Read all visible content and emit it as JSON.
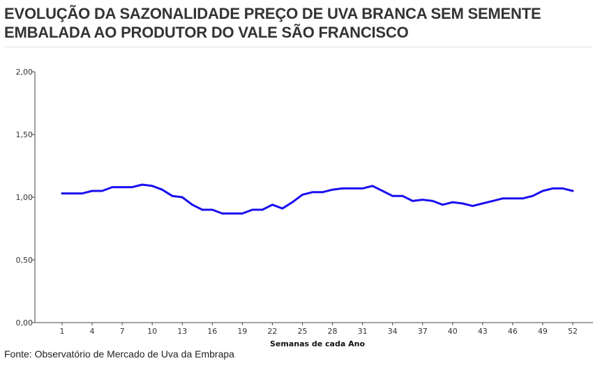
{
  "header": {
    "title_line1": "EVOLUÇÃO DA SAZONALIDADE PREÇO DE UVA BRANCA SEM SEMENTE",
    "title_line2": "EMBALADA AO PRODUTOR DO VALE SÃO FRANCISCO"
  },
  "footer": {
    "source": "Fonte: Observatório de Mercado de Uva da Embrapa"
  },
  "chart_data": {
    "type": "line",
    "xlabel": "Semanas de cada Ano",
    "ylabel": "",
    "xlim": [
      1,
      52
    ],
    "ylim": [
      0,
      2
    ],
    "x_ticks": [
      1,
      4,
      7,
      10,
      13,
      16,
      19,
      22,
      25,
      28,
      31,
      34,
      37,
      40,
      43,
      46,
      49,
      52
    ],
    "y_ticks": [
      "0,00",
      "0,50",
      "1,00",
      "1,50",
      "2,00"
    ],
    "y_tick_values": [
      0,
      0.5,
      1,
      1.5,
      2
    ],
    "grid": false,
    "legend": "none",
    "line_color": "#1a0ff0",
    "series": [
      {
        "x": [
          1,
          2,
          3,
          4,
          5,
          6,
          7,
          8,
          9,
          10,
          11,
          12,
          13,
          14,
          15,
          16,
          17,
          18,
          19,
          20,
          21,
          22,
          23,
          24,
          25,
          26,
          27,
          28,
          29,
          30,
          31,
          32,
          33,
          34,
          35,
          36,
          37,
          38,
          39,
          40,
          41,
          42,
          43,
          44,
          45,
          46,
          47,
          48,
          49,
          50,
          51,
          52
        ],
        "values": [
          1.03,
          1.03,
          1.03,
          1.05,
          1.05,
          1.08,
          1.08,
          1.08,
          1.1,
          1.09,
          1.06,
          1.01,
          1.0,
          0.94,
          0.9,
          0.9,
          0.87,
          0.87,
          0.87,
          0.9,
          0.9,
          0.94,
          0.91,
          0.96,
          1.02,
          1.04,
          1.04,
          1.06,
          1.07,
          1.07,
          1.07,
          1.09,
          1.05,
          1.01,
          1.01,
          0.97,
          0.98,
          0.97,
          0.94,
          0.96,
          0.95,
          0.93,
          0.95,
          0.97,
          0.99,
          0.99,
          0.99,
          1.01,
          1.05,
          1.07,
          1.07,
          1.05
        ]
      }
    ]
  }
}
